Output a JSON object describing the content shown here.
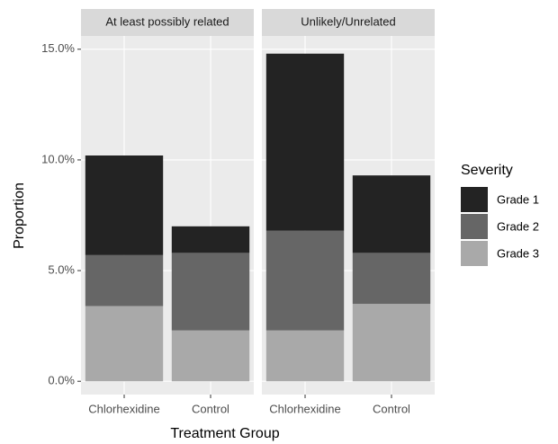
{
  "chart_data": {
    "type": "bar",
    "stacked": true,
    "x_label": "Treatment Group",
    "y_label": "Proportion",
    "legend_title": "Severity",
    "categories": [
      "Chlorhexidine",
      "Control"
    ],
    "series": [
      {
        "name": "Grade 1",
        "color": "#232323"
      },
      {
        "name": "Grade 2",
        "color": "#666666"
      },
      {
        "name": "Grade 3",
        "color": "#a9a9a9"
      }
    ],
    "facets": [
      {
        "title": "At least possibly related",
        "values": [
          [
            4.5,
            1.2
          ],
          [
            2.3,
            3.5
          ],
          [
            3.4,
            2.3
          ]
        ]
      },
      {
        "title": "Unlikely/Unrelated",
        "values": [
          [
            8.0,
            3.5
          ],
          [
            4.5,
            2.3
          ],
          [
            2.3,
            3.5
          ]
        ]
      }
    ],
    "ylim": [
      -0.6,
      15.6
    ],
    "yticks": [
      {
        "value": 0,
        "label": "0.0%"
      },
      {
        "value": 5,
        "label": "5.0%"
      },
      {
        "value": 10,
        "label": "10.0%"
      },
      {
        "value": 15,
        "label": "15.0%"
      }
    ],
    "grid": true
  }
}
